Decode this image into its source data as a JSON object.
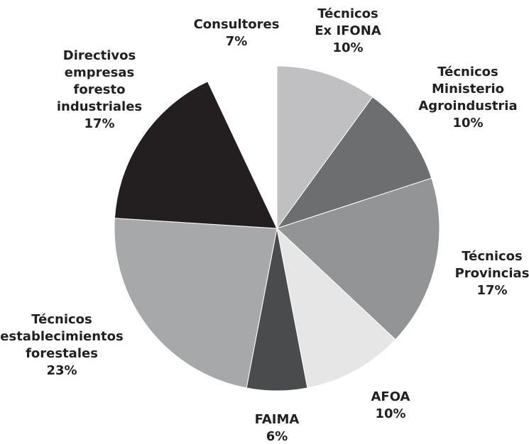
{
  "chart_data": {
    "type": "pie",
    "categories": [
      [
        "Técnicos",
        "Ex IFONA"
      ],
      [
        "Técnicos",
        "Ministerio",
        "Agroindustria"
      ],
      [
        "Técnicos",
        "Provincias"
      ],
      [
        "AFOA"
      ],
      [
        "FAIMA"
      ],
      [
        "Técnicos",
        "establecimientos",
        "forestales"
      ],
      [
        "Directivos",
        "empresas",
        "foresto",
        "industriales"
      ],
      [
        "Consultores"
      ]
    ],
    "values": [
      10,
      10,
      17,
      10,
      6,
      23,
      17,
      7
    ],
    "value_labels": [
      "10%",
      "10%",
      "17%",
      "10%",
      "6%",
      "23%",
      "17%",
      "7%"
    ],
    "colors": [
      "#c0c0c2",
      "#6d6e70",
      "#939496",
      "#e6e6e7",
      "#4a4b4d",
      "#a7a8aa",
      "#231f20",
      "#ffffff"
    ]
  }
}
